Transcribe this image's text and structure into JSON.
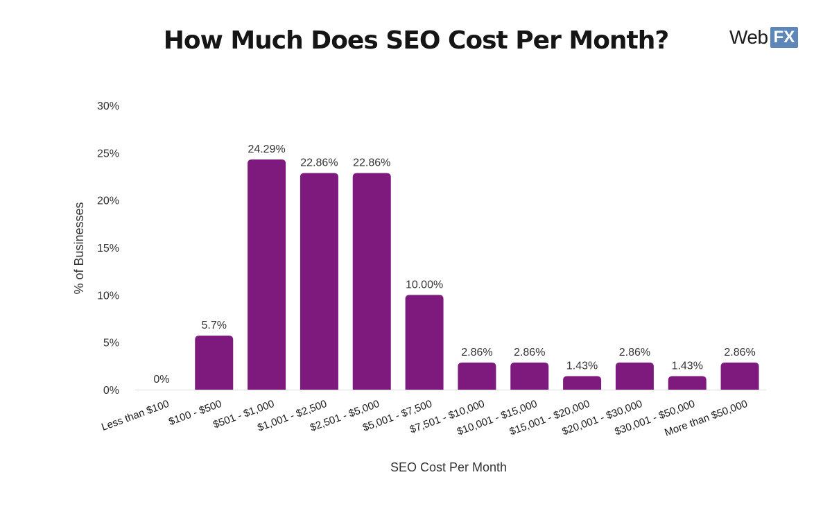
{
  "header": {
    "title": "How Much Does SEO Cost Per Month?",
    "logo_web": "Web",
    "logo_fx": "FX",
    "logo_fx_color": "#5d87b9"
  },
  "chart_data": {
    "type": "bar",
    "title": "How Much Does SEO Cost Per Month?",
    "xlabel": "SEO Cost Per Month",
    "ylabel": "% of Businesses",
    "ylim": [
      0,
      30
    ],
    "yticks": [
      "0%",
      "5%",
      "10%",
      "15%",
      "20%",
      "25%",
      "30%"
    ],
    "ytick_values": [
      0,
      5,
      10,
      15,
      20,
      25,
      30
    ],
    "grid": false,
    "bar_color": "#7e1a7e",
    "categories": [
      "Less than $100",
      "$100 - $500",
      "$501 - $1,000",
      "$1,001 - $2,500",
      "$2,501 - $5,000",
      "$5,001 - $7,500",
      "$7,501 - $10,000",
      "$10,001 - $15,000",
      "$15,001 - $20,000",
      "$20,001 - $30,000",
      "$30,001 - $50,000",
      "More than $50,000"
    ],
    "values": [
      0,
      5.7,
      24.29,
      22.86,
      22.86,
      10.0,
      2.86,
      2.86,
      1.43,
      2.86,
      1.43,
      2.86
    ],
    "data_labels": [
      "0%",
      "5.7%",
      "24.29%",
      "22.86%",
      "22.86%",
      "10.00%",
      "2.86%",
      "2.86%",
      "1.43%",
      "2.86%",
      "1.43%",
      "2.86%"
    ]
  }
}
